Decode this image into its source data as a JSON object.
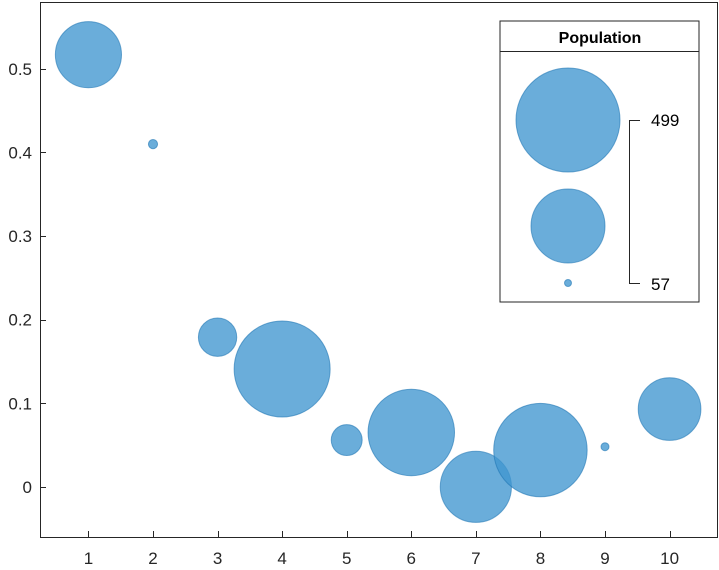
{
  "chart_data": {
    "type": "scatter",
    "title": "",
    "xlabel": "",
    "ylabel": "",
    "xlim": [
      0.25,
      10.75
    ],
    "ylim": [
      -0.06,
      0.58
    ],
    "xticks": [
      1,
      2,
      3,
      4,
      5,
      6,
      7,
      8,
      9,
      10
    ],
    "yticks": [
      0,
      0.1,
      0.2,
      0.3,
      0.4,
      0.5
    ],
    "ytick_labels": [
      "0",
      "0.1",
      "0.2",
      "0.3",
      "0.4",
      "0.5"
    ],
    "grid": false,
    "bubble_color": "#4096d0",
    "points": [
      {
        "x": 1,
        "y": 0.517,
        "size": 300
      },
      {
        "x": 2,
        "y": 0.41,
        "size": 60
      },
      {
        "x": 3,
        "y": 0.179,
        "size": 160
      },
      {
        "x": 4,
        "y": 0.141,
        "size": 499
      },
      {
        "x": 5,
        "y": 0.056,
        "size": 130
      },
      {
        "x": 6,
        "y": 0.065,
        "size": 430
      },
      {
        "x": 7,
        "y": 0.0,
        "size": 330
      },
      {
        "x": 8,
        "y": 0.044,
        "size": 480
      },
      {
        "x": 9,
        "y": 0.048,
        "size": 57
      },
      {
        "x": 10,
        "y": 0.093,
        "size": 280
      }
    ],
    "legend": {
      "title": "Population",
      "position": "top-right",
      "max_label": "499",
      "min_label": "57",
      "max_value": 499,
      "min_value": 57
    }
  }
}
